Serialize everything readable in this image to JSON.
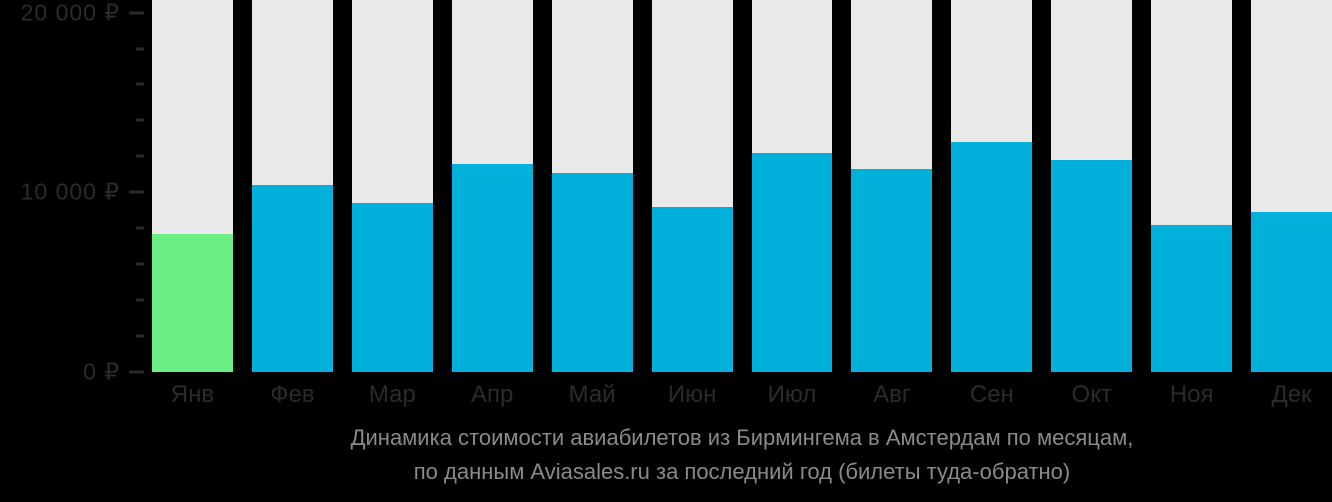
{
  "chart_data": {
    "type": "bar",
    "title": "Динамика стоимости авиабилетов из Бирмингема в Амстердам по месяцам, по данным Aviasales.ru за последний год (билеты туда-обратно)",
    "title_line1": "Динамика стоимости авиабилетов из Бирмингема в Амстердам по месяцам,",
    "title_line2": "по данным Aviasales.ru за последний год (билеты туда-обратно)",
    "categories": [
      "Янв",
      "Фев",
      "Мар",
      "Апр",
      "Май",
      "Июн",
      "Июл",
      "Авг",
      "Сен",
      "Окт",
      "Ноя",
      "Дек"
    ],
    "values": [
      7700,
      10400,
      9400,
      11600,
      11100,
      9200,
      12200,
      11300,
      12800,
      11800,
      8200,
      8900
    ],
    "currency": "₽",
    "xlabel": "",
    "ylabel": "",
    "ylim": [
      0,
      20700
    ],
    "axis_max": 20700,
    "grid": false,
    "legend": "none",
    "y_ticks": [
      {
        "value": 0,
        "label": "0 ₽",
        "major": true
      },
      {
        "value": 2000,
        "label": "",
        "major": false
      },
      {
        "value": 4000,
        "label": "",
        "major": false
      },
      {
        "value": 6000,
        "label": "",
        "major": false
      },
      {
        "value": 8000,
        "label": "",
        "major": false
      },
      {
        "value": 10000,
        "label": "10 000 ₽",
        "major": true
      },
      {
        "value": 12000,
        "label": "",
        "major": false
      },
      {
        "value": 14000,
        "label": "",
        "major": false
      },
      {
        "value": 16000,
        "label": "",
        "major": false
      },
      {
        "value": 18000,
        "label": "",
        "major": false
      },
      {
        "value": 20000,
        "label": "20 000 ₽",
        "major": true
      }
    ],
    "colors": {
      "bar_default": "#02b0dc",
      "bar_highlight": "#6cee86",
      "track": "#e9e9e9",
      "background": "#000000",
      "axis_text": "#2b2b2b",
      "title_text": "#8a8a8a"
    },
    "highlight_index": 0
  }
}
